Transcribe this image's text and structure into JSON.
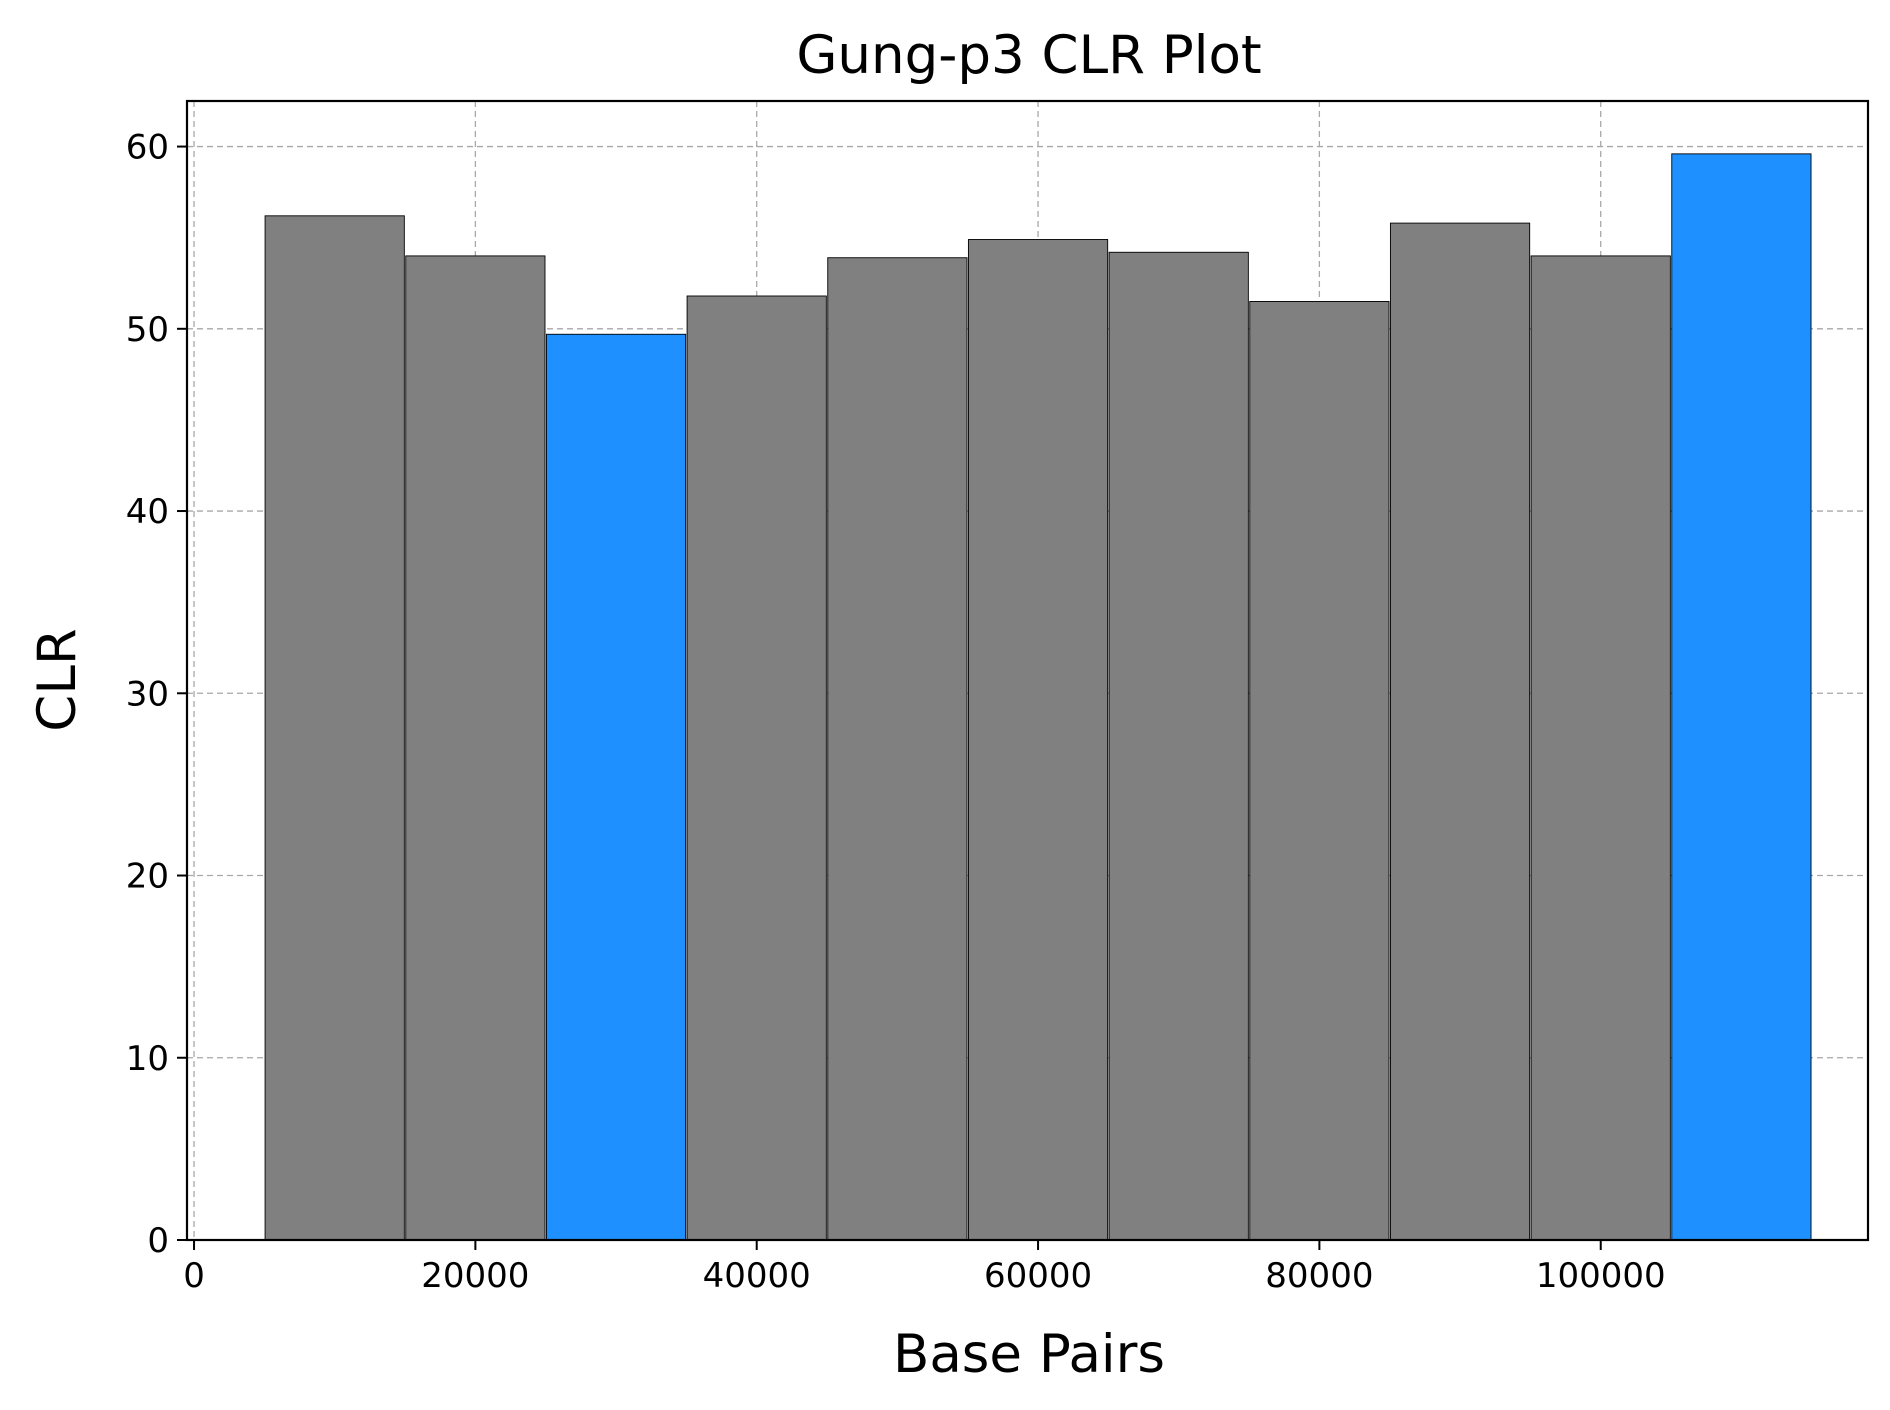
{
  "chart_data": {
    "type": "bar",
    "title": "Gung-p3 CLR Plot",
    "xlabel": "Base Pairs",
    "ylabel": "CLR",
    "xlim": [
      -500,
      119000
    ],
    "ylim": [
      0,
      62.5
    ],
    "grid": true,
    "bar_width": 9900,
    "x": [
      10000,
      20000,
      30000,
      40000,
      50000,
      60000,
      70000,
      80000,
      90000,
      100000,
      110000
    ],
    "values": [
      56.2,
      54.0,
      49.7,
      51.8,
      53.9,
      54.9,
      54.2,
      51.5,
      55.8,
      54.0,
      59.6
    ],
    "highlight": [
      false,
      false,
      true,
      false,
      false,
      false,
      false,
      false,
      false,
      false,
      true
    ],
    "x_ticks": [
      0,
      20000,
      40000,
      60000,
      80000,
      100000
    ],
    "y_ticks": [
      0,
      10,
      20,
      30,
      40,
      50,
      60
    ],
    "colors": {
      "default_bar": "#808080",
      "highlight_bar": "#1e90ff",
      "bar_edge": "#000000",
      "grid": "#a8a8a8"
    }
  }
}
